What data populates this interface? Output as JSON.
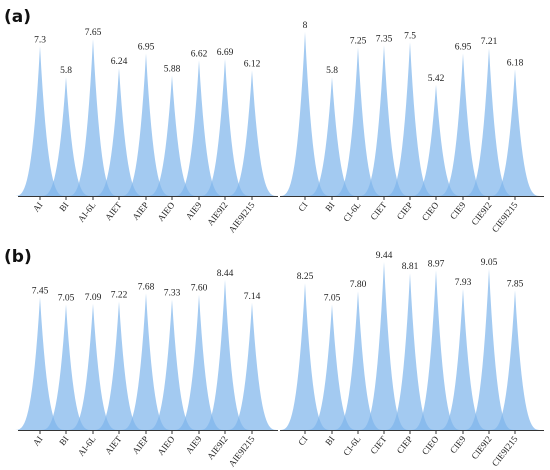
{
  "chart_data": [
    {
      "panel_label": "(a)",
      "type": "area",
      "groups": [
        {
          "categories": [
            "AI",
            "BI",
            "AI-6L",
            "AIET",
            "AIEP",
            "AIEO",
            "AIE9",
            "AIE9I2",
            "AIE9I215"
          ],
          "values": [
            7.3,
            5.8,
            7.65,
            6.24,
            6.95,
            5.88,
            6.62,
            6.69,
            6.12
          ],
          "labels": [
            "7.3",
            "5.8",
            "7.65",
            "6.24",
            "6.95",
            "5.88",
            "6.62",
            "6.69",
            "6.12"
          ]
        },
        {
          "categories": [
            "CI",
            "BI",
            "CI-6L",
            "CIET",
            "CIEP",
            "CIEO",
            "CIE9",
            "CIE9I2",
            "CIE9I215"
          ],
          "values": [
            8,
            5.8,
            7.25,
            7.35,
            7.5,
            5.42,
            6.95,
            7.21,
            6.18
          ],
          "labels": [
            "8",
            "5.8",
            "7.25",
            "7.35",
            "7.5",
            "5.42",
            "6.95",
            "7.21",
            "6.18"
          ]
        }
      ],
      "color": "#7fb6ec"
    },
    {
      "panel_label": "(b)",
      "type": "area",
      "groups": [
        {
          "categories": [
            "AI",
            "BI",
            "AI-6L",
            "AIET",
            "AIEP",
            "AIEO",
            "AIE9",
            "AIE9I2",
            "AIE9I215"
          ],
          "values": [
            7.45,
            7.05,
            7.09,
            7.22,
            7.68,
            7.33,
            7.6,
            8.44,
            7.14
          ],
          "labels": [
            "7.45",
            "7.05",
            "7.09",
            "7.22",
            "7.68",
            "7.33",
            "7.60",
            "8.44",
            "7.14"
          ]
        },
        {
          "categories": [
            "CI",
            "BI",
            "CI-6L",
            "CIET",
            "CIEP",
            "CIEO",
            "CIE9",
            "CIE9I2",
            "CIE9I215"
          ],
          "values": [
            8.25,
            7.05,
            7.8,
            9.44,
            8.81,
            8.97,
            7.93,
            9.05,
            7.85
          ],
          "labels": [
            "8.25",
            "7.05",
            "7.80",
            "9.44",
            "8.81",
            "8.97",
            "7.93",
            "9.05",
            "7.85"
          ]
        }
      ],
      "color": "#7fb6ec"
    }
  ]
}
